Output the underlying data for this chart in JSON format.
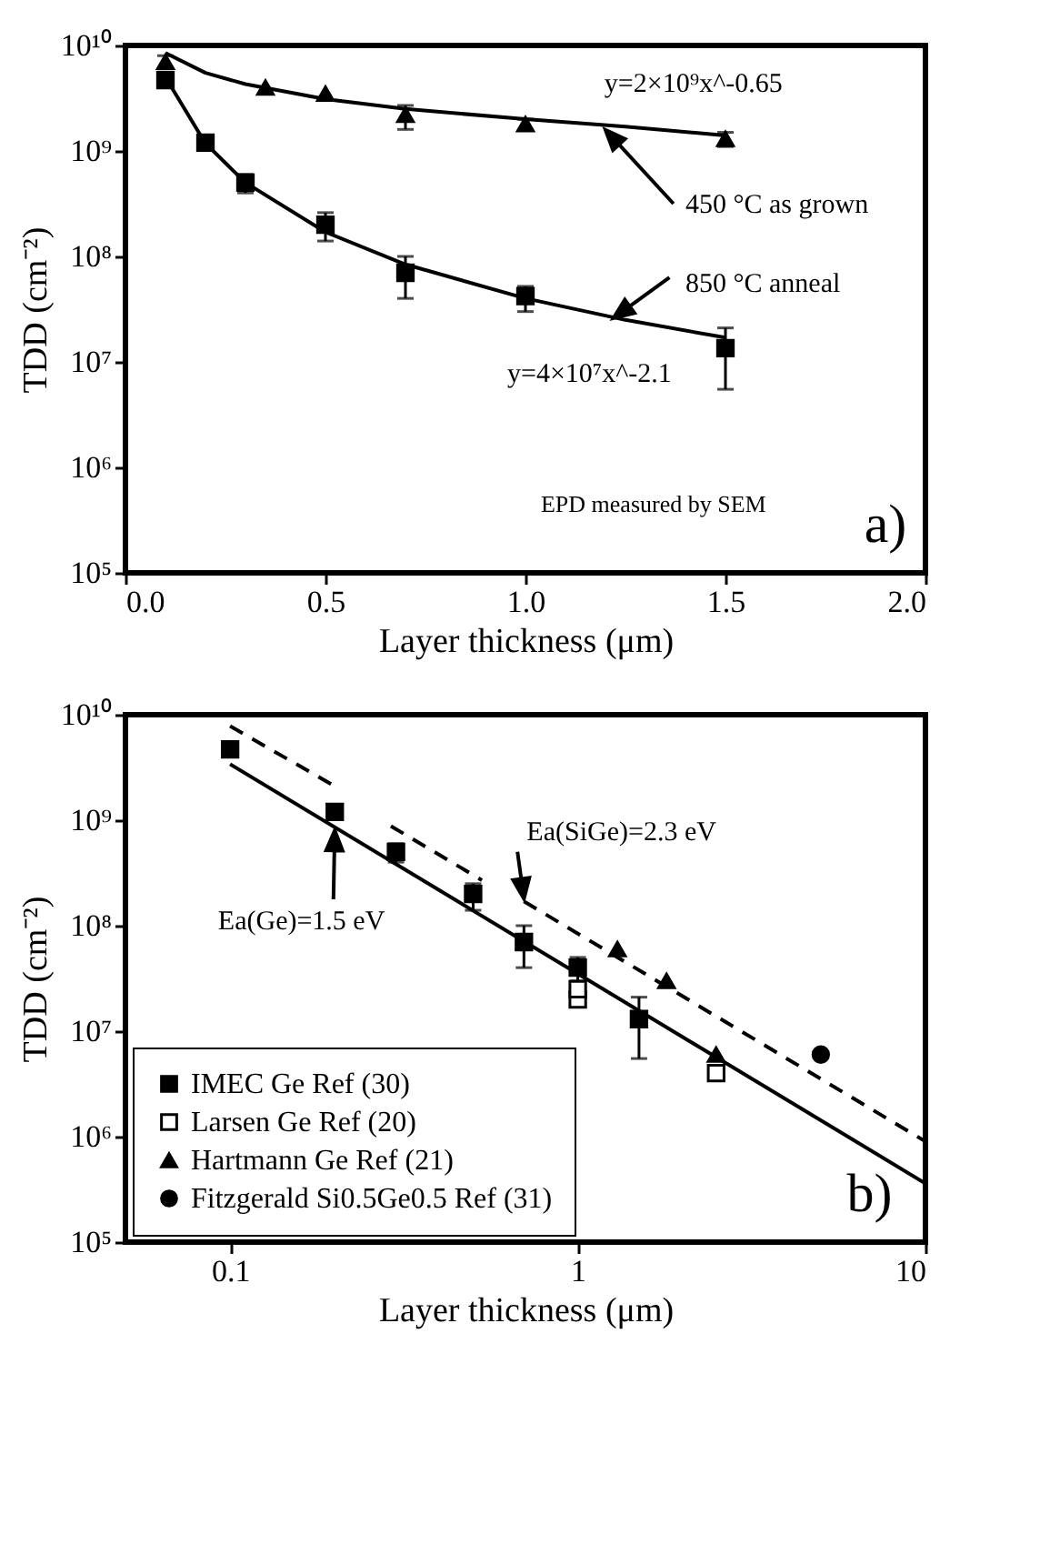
{
  "chart_data": [
    {
      "type": "scatter",
      "xlabel": "Layer thickness (μm)",
      "ylabel": "TDD (cm⁻²)",
      "log": "y",
      "grid": false,
      "xlim": [
        0,
        2
      ],
      "xticks": [
        {
          "value": 0,
          "label": "0.0"
        },
        0.5,
        {
          "value": 1,
          "label": "1.0"
        },
        1.5,
        {
          "value": 2,
          "label": "2.0"
        }
      ],
      "ylim": [
        100000,
        10000000000
      ],
      "yticks": [
        {
          "value": 100000,
          "label": "10⁵"
        },
        {
          "value": 1000000,
          "label": "10⁶"
        },
        {
          "value": 10000000,
          "label": "10⁷"
        },
        {
          "value": 100000000,
          "label": "10⁸"
        },
        {
          "value": 1000000000,
          "label": "10⁹"
        },
        {
          "value": 10000000000,
          "label": "10¹⁰"
        }
      ],
      "series": [
        {
          "type": "scatter",
          "marker": "square",
          "color": "#000000",
          "x": [
            0.1,
            0.2,
            0.3,
            0.5,
            0.7,
            1.0,
            1.5
          ],
          "values": [
            4700000000.0,
            1200000000.0,
            500000000.0,
            200000000.0,
            70000000.0,
            42000000.0,
            13500000.0
          ],
          "errors": [
            [
              4200000000.0,
              5300000000.0
            ],
            [
              1100000000.0,
              1300000000.0
            ],
            [
              400000000.0,
              600000000.0
            ],
            [
              140000000.0,
              260000000.0
            ],
            [
              40000000.0,
              100000000.0
            ],
            [
              30000000.0,
              52000000.0
            ],
            [
              5500000.0,
              21000000.0
            ]
          ]
        },
        {
          "type": "scatter",
          "marker": "triangle",
          "color": "#000000",
          "x": [
            0.1,
            0.35,
            0.5,
            0.7,
            1.0,
            1.5
          ],
          "values": [
            7000000000.0,
            4000000000.0,
            3500000000.0,
            2200000000.0,
            1800000000.0,
            1300000000.0
          ],
          "errors": [
            [
              6000000000.0,
              8000000000.0
            ],
            null,
            null,
            [
              1600000000.0,
              2700000000.0
            ],
            [
              1600000000.0,
              2000000000.0
            ],
            [
              1100000000.0,
              1500000000.0
            ]
          ]
        },
        {
          "type": "line",
          "marker": "none",
          "line_style": "solid",
          "color": "#000000",
          "x": [
            0.1,
            0.2,
            0.3,
            0.5,
            0.7,
            1.0,
            1.25,
            1.5
          ],
          "values": [
            8500000000.0,
            5500000000.0,
            4300000000.0,
            3100000000.0,
            2500000000.0,
            2000000000.0,
            1700000000.0,
            1400000000.0
          ]
        },
        {
          "type": "line",
          "marker": "none",
          "line_style": "solid",
          "color": "#000000",
          "x": [
            0.1,
            0.2,
            0.3,
            0.5,
            0.7,
            1.0,
            1.25,
            1.5
          ],
          "values": [
            5000000000.0,
            1180000000.0,
            500000000.0,
            170000000.0,
            84000000.0,
            40000000.0,
            25000000.0,
            17000000.0
          ]
        }
      ],
      "annotations": [
        "y=2×10⁹x^-0.65",
        "450 °C as grown",
        {
          "text": "850 °C anneal",
          "x": 1.22,
          "y": 26000000.0
        },
        "y=4×10⁷x^-2.1",
        "EPD measured by SEM",
        "a)"
      ]
    },
    {
      "type": "scatter",
      "xlabel": "Layer thickness (μm)",
      "ylabel": "TDD (cm⁻²)",
      "log": "xy",
      "grid": false,
      "legend": "bottom left",
      "xlim": [
        0.05,
        10
      ],
      "xticks": [
        0.1,
        1,
        10
      ],
      "ylim": [
        100000,
        10000000000
      ],
      "yticks": [
        {
          "value": 100000,
          "label": "10⁵"
        },
        {
          "value": 1000000,
          "label": "10⁶"
        },
        {
          "value": 10000000,
          "label": "10⁷"
        },
        {
          "value": 100000000,
          "label": "10⁸"
        },
        {
          "value": 1000000000,
          "label": "10⁹"
        },
        {
          "value": 10000000000,
          "label": "10¹⁰"
        }
      ],
      "series": [
        {
          "type": "scatter",
          "name": "IMEC Ge Ref (30)",
          "marker": "square",
          "color": "#000000",
          "x": [
            0.1,
            0.2,
            0.3,
            0.5,
            0.7,
            1.0,
            1.5
          ],
          "values": [
            4700000000.0,
            1200000000.0,
            500000000.0,
            200000000.0,
            70000000.0,
            40000000.0,
            13000000.0
          ],
          "errors": [
            [
              4200000000.0,
              5200000000.0
            ],
            [
              1100000000.0,
              1300000000.0
            ],
            [
              400000000.0,
              600000000.0
            ],
            [
              140000000.0,
              250000000.0
            ],
            [
              40000000.0,
              100000000.0
            ],
            [
              30000000.0,
              50000000.0
            ],
            [
              5500000.0,
              21000000.0
            ]
          ]
        },
        {
          "type": "scatter",
          "name": "Larsen Ge Ref (20)",
          "marker": "square",
          "color": "#ffffff",
          "x": [
            1.0,
            1.0,
            2.5
          ],
          "values": [
            20000000.0,
            25000000.0,
            4000000.0
          ]
        },
        {
          "type": "scatter",
          "name": "Hartmann Ge Ref (21)",
          "marker": "triangle",
          "color": "#000000",
          "x": [
            1.3,
            1.8,
            2.5
          ],
          "values": [
            60000000.0,
            30000000.0,
            6000000.0
          ]
        },
        {
          "type": "scatter",
          "name": "Fitzgerald Si0.5Ge0.5 Ref (31)",
          "marker": "circle",
          "color": "#000000",
          "x": [
            5
          ],
          "values": [
            6000000.0
          ]
        },
        {
          "type": "line",
          "marker": "none",
          "line_style": "solid",
          "color": "#000000",
          "x": [
            0.1,
            10
          ],
          "values": [
            3400000000.0,
            360000.0
          ]
        },
        {
          "type": "line",
          "marker": "none",
          "line_style": "dashed",
          "color": "#000000",
          "x": [
            0.1,
            0.2
          ],
          "values": [
            7800000000.0,
            2100000000.0
          ]
        },
        {
          "type": "line",
          "marker": "none",
          "line_style": "dashed",
          "color": "#000000",
          "x": [
            0.29,
            0.53
          ],
          "values": [
            880000000.0,
            270000000.0
          ]
        },
        {
          "type": "line",
          "marker": "none",
          "line_style": "dashed",
          "color": "#000000",
          "x": [
            0.7,
            10
          ],
          "values": [
            170000000.0,
            900000.0
          ]
        }
      ],
      "annotations": [
        {
          "text": "Ea(Ge)=1.5 eV",
          "x": 0.2,
          "y": 800000000.0
        },
        {
          "text": "Ea(SiGe)=2.3 eV",
          "x": 0.7,
          "y": 180000000.0
        },
        "b)"
      ]
    }
  ]
}
